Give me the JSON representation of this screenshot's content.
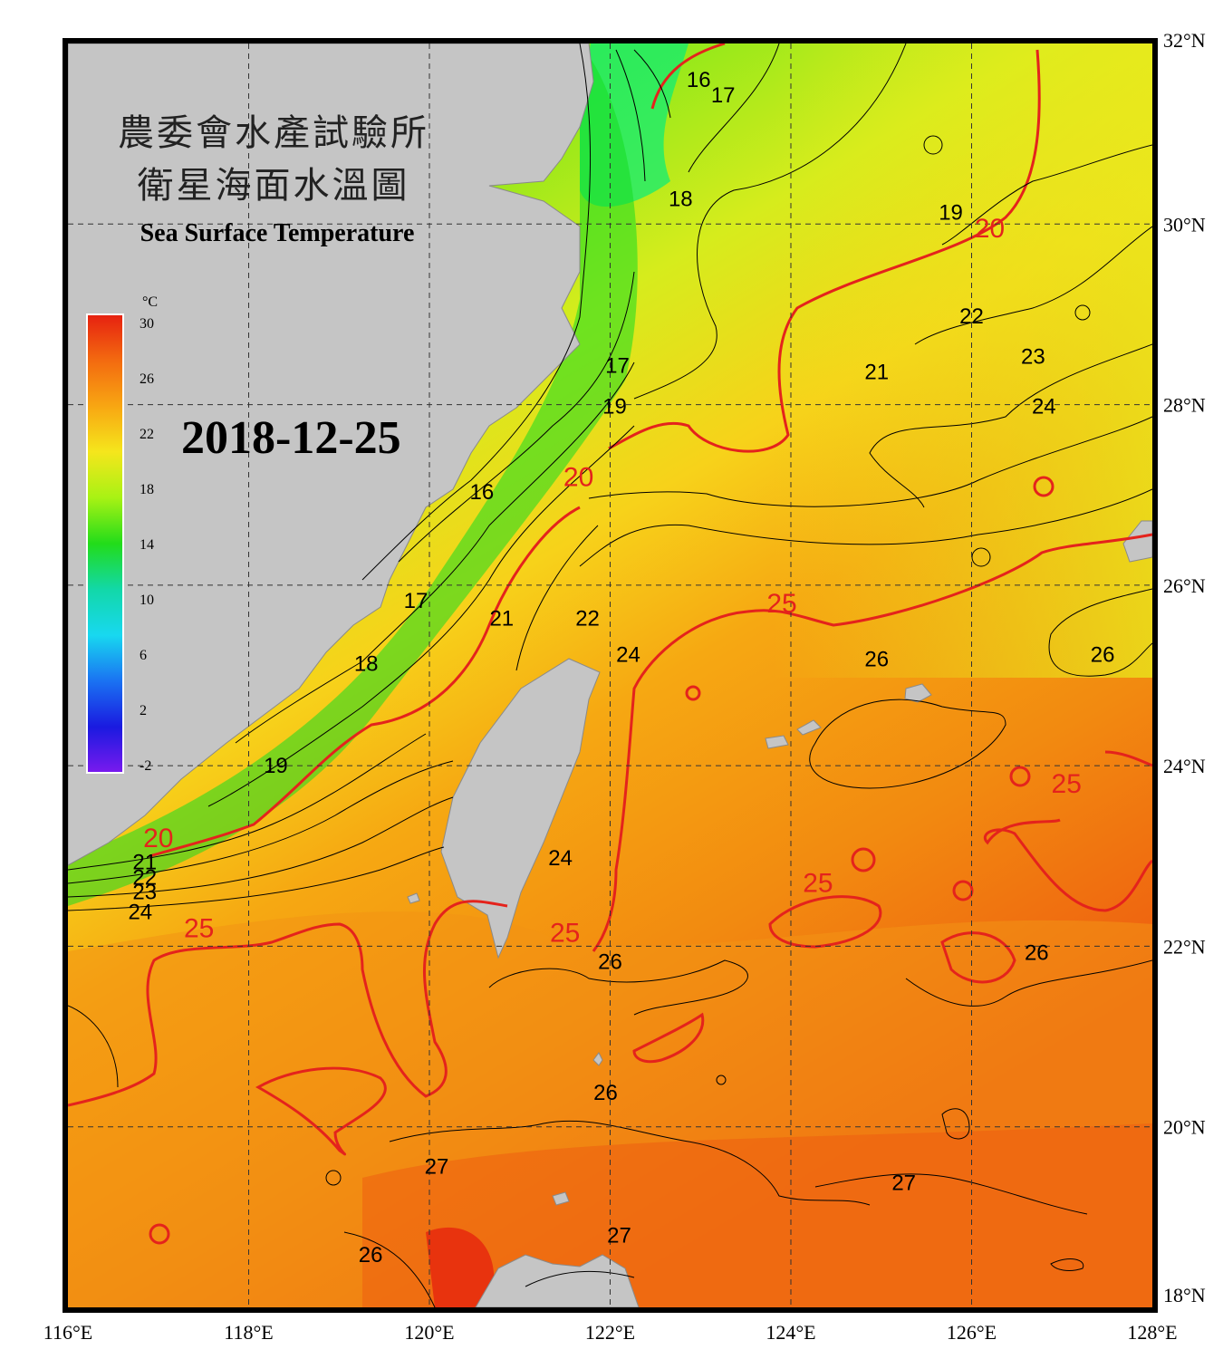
{
  "title": {
    "line1": "農委會水產試驗所",
    "line2": "衛星海面水溫圖",
    "english": "Sea Surface Temperature"
  },
  "date": "2018-12-25",
  "colorbar": {
    "unit": "°C",
    "ticks": [
      "30",
      "26",
      "22",
      "18",
      "14",
      "10",
      "6",
      "2",
      "-2"
    ],
    "colors": [
      "#e62010",
      "#f36a10",
      "#f8a612",
      "#f5e61c",
      "#a8f214",
      "#22dc1a",
      "#12d8a8",
      "#18d8f0",
      "#1a72f2",
      "#1a1ae0",
      "#7a1aee"
    ]
  },
  "axes": {
    "lat_labels": [
      "32°N",
      "30°N",
      "28°N",
      "26°N",
      "24°N",
      "22°N",
      "20°N",
      "18°N"
    ],
    "lon_labels": [
      "116°E",
      "118°E",
      "120°E",
      "122°E",
      "124°E",
      "126°E",
      "128°E"
    ]
  },
  "isotherm_labels": {
    "black": [
      {
        "t": "16",
        "lon": 122.98,
        "lat": 31.52
      },
      {
        "t": "17",
        "lon": 123.25,
        "lat": 31.35
      },
      {
        "t": "18",
        "lon": 122.78,
        "lat": 30.2
      },
      {
        "t": "19",
        "lon": 125.77,
        "lat": 30.05
      },
      {
        "t": "22",
        "lon": 126.0,
        "lat": 28.9
      },
      {
        "t": "21",
        "lon": 124.95,
        "lat": 28.28
      },
      {
        "t": "23",
        "lon": 126.68,
        "lat": 28.45
      },
      {
        "t": "24",
        "lon": 126.8,
        "lat": 27.9
      },
      {
        "t": "17",
        "lon": 122.08,
        "lat": 28.35
      },
      {
        "t": "19",
        "lon": 122.05,
        "lat": 27.9
      },
      {
        "t": "16",
        "lon": 120.58,
        "lat": 26.95
      },
      {
        "t": "17",
        "lon": 119.85,
        "lat": 25.75
      },
      {
        "t": "18",
        "lon": 119.3,
        "lat": 25.05
      },
      {
        "t": "19",
        "lon": 118.3,
        "lat": 23.92
      },
      {
        "t": "21",
        "lon": 120.8,
        "lat": 25.55
      },
      {
        "t": "22",
        "lon": 121.75,
        "lat": 25.55
      },
      {
        "t": "24",
        "lon": 122.2,
        "lat": 25.15
      },
      {
        "t": "26",
        "lon": 124.95,
        "lat": 25.1
      },
      {
        "t": "26",
        "lon": 127.45,
        "lat": 25.15
      },
      {
        "t": "24",
        "lon": 121.45,
        "lat": 22.9
      },
      {
        "t": "21",
        "lon": 116.85,
        "lat": 22.85
      },
      {
        "t": "22",
        "lon": 116.85,
        "lat": 22.68
      },
      {
        "t": "23",
        "lon": 116.85,
        "lat": 22.52
      },
      {
        "t": "24",
        "lon": 116.8,
        "lat": 22.3
      },
      {
        "t": "26",
        "lon": 122.0,
        "lat": 21.75
      },
      {
        "t": "26",
        "lon": 126.72,
        "lat": 21.85
      },
      {
        "t": "27",
        "lon": 120.08,
        "lat": 19.48
      },
      {
        "t": "27",
        "lon": 125.25,
        "lat": 19.3
      },
      {
        "t": "26",
        "lon": 119.35,
        "lat": 18.5
      },
      {
        "t": "27",
        "lon": 122.1,
        "lat": 18.72
      },
      {
        "t": "26",
        "lon": 121.95,
        "lat": 20.3
      }
    ],
    "red": [
      {
        "t": "20",
        "lon": 126.2,
        "lat": 29.85
      },
      {
        "t": "20",
        "lon": 121.65,
        "lat": 27.1
      },
      {
        "t": "20",
        "lon": 117.0,
        "lat": 23.1
      },
      {
        "t": "25",
        "lon": 123.9,
        "lat": 25.7
      },
      {
        "t": "25",
        "lon": 127.05,
        "lat": 23.7
      },
      {
        "t": "25",
        "lon": 124.3,
        "lat": 22.6
      },
      {
        "t": "25",
        "lon": 121.5,
        "lat": 22.05
      },
      {
        "t": "25",
        "lon": 117.45,
        "lat": 22.1
      }
    ]
  }
}
